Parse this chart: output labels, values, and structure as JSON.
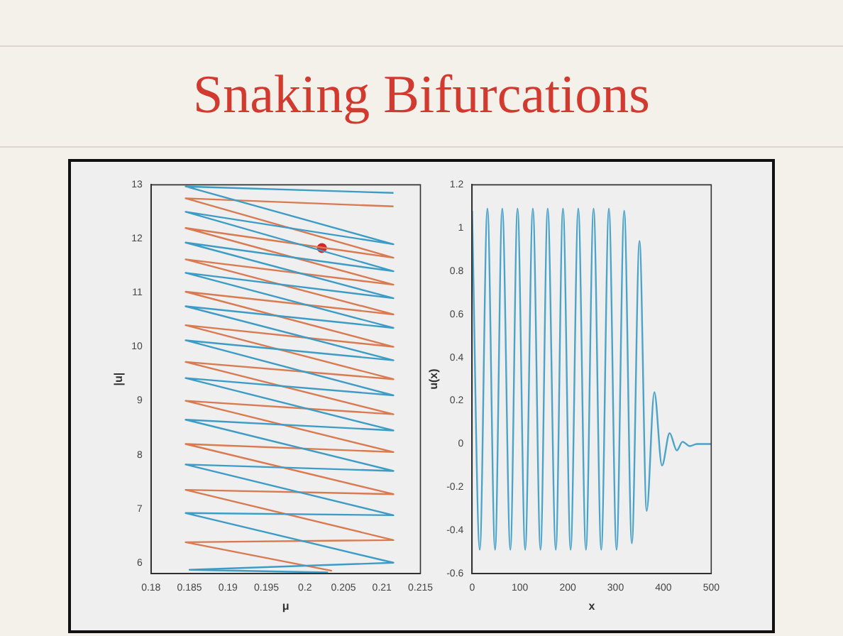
{
  "chart_data": [
    {
      "type": "line",
      "title": "Snaking Bifurcations",
      "xlabel": "μ",
      "ylabel": "|u|",
      "xlim": [
        0.18,
        0.215
      ],
      "ylim": [
        5.8,
        13
      ],
      "xticks": [
        0.18,
        0.185,
        0.19,
        0.195,
        0.2,
        0.205,
        0.21,
        0.215
      ],
      "yticks": [
        6,
        7,
        8,
        9,
        10,
        11,
        12,
        13
      ],
      "series": [
        {
          "type": "line",
          "color": "#3d9cc6",
          "x": [
            0.203,
            0.185,
            0.2115,
            0.1845,
            0.2115,
            0.1845,
            0.2115,
            0.1845,
            0.2115,
            0.1845,
            0.2115,
            0.1845,
            0.2115,
            0.1845,
            0.2115,
            0.1845,
            0.2115,
            0.1845,
            0.2115,
            0.1845,
            0.2115,
            0.1845,
            0.2115
          ],
          "values": [
            5.82,
            5.87,
            6.0,
            6.92,
            6.88,
            7.82,
            7.7,
            8.65,
            8.45,
            9.42,
            9.1,
            10.12,
            9.75,
            10.75,
            10.35,
            11.37,
            10.9,
            11.93,
            11.4,
            12.5,
            11.9,
            12.97,
            12.85
          ]
        },
        {
          "type": "line",
          "color": "#d97a50",
          "x": [
            0.2035,
            0.1845,
            0.2115,
            0.1845,
            0.2115,
            0.1845,
            0.2115,
            0.1845,
            0.2115,
            0.1845,
            0.2115,
            0.1845,
            0.2115,
            0.1845,
            0.2115,
            0.1845,
            0.2115,
            0.1845,
            0.2115,
            0.1845,
            0.2115
          ],
          "values": [
            5.85,
            6.38,
            6.42,
            7.35,
            7.27,
            8.2,
            8.05,
            9.0,
            8.75,
            9.72,
            9.4,
            10.4,
            10.0,
            11.02,
            10.6,
            11.62,
            11.15,
            12.2,
            11.65,
            12.75,
            12.6
          ]
        },
        {
          "type": "scatter",
          "color": "#d62728",
          "x": [
            0.2022
          ],
          "values": [
            11.83
          ]
        }
      ]
    },
    {
      "type": "line",
      "xlabel": "x",
      "ylabel": "u(x)",
      "xlim": [
        0,
        500
      ],
      "ylim": [
        -0.6,
        1.2
      ],
      "xticks": [
        0,
        100,
        200,
        300,
        400,
        500
      ],
      "yticks": [
        -0.6,
        -0.4,
        -0.2,
        0,
        0.2,
        0.4,
        0.6,
        0.8,
        1,
        1.2
      ],
      "series": [
        {
          "type": "line",
          "color": "#4aa3c8",
          "x": [
            0,
            16,
            32,
            48,
            63,
            80,
            95,
            111,
            127,
            143,
            158,
            175,
            190,
            206,
            222,
            238,
            254,
            270,
            286,
            302,
            318,
            334,
            350,
            365,
            381,
            397,
            413,
            428,
            440,
            455,
            470,
            500
          ],
          "values": [
            1.08,
            -0.49,
            1.09,
            -0.49,
            1.09,
            -0.49,
            1.09,
            -0.49,
            1.09,
            -0.49,
            1.09,
            -0.49,
            1.09,
            -0.49,
            1.09,
            -0.49,
            1.09,
            -0.49,
            1.09,
            -0.49,
            1.08,
            -0.46,
            0.94,
            -0.31,
            0.24,
            -0.1,
            0.05,
            -0.03,
            0.01,
            -0.01,
            0,
            0
          ]
        }
      ]
    }
  ]
}
